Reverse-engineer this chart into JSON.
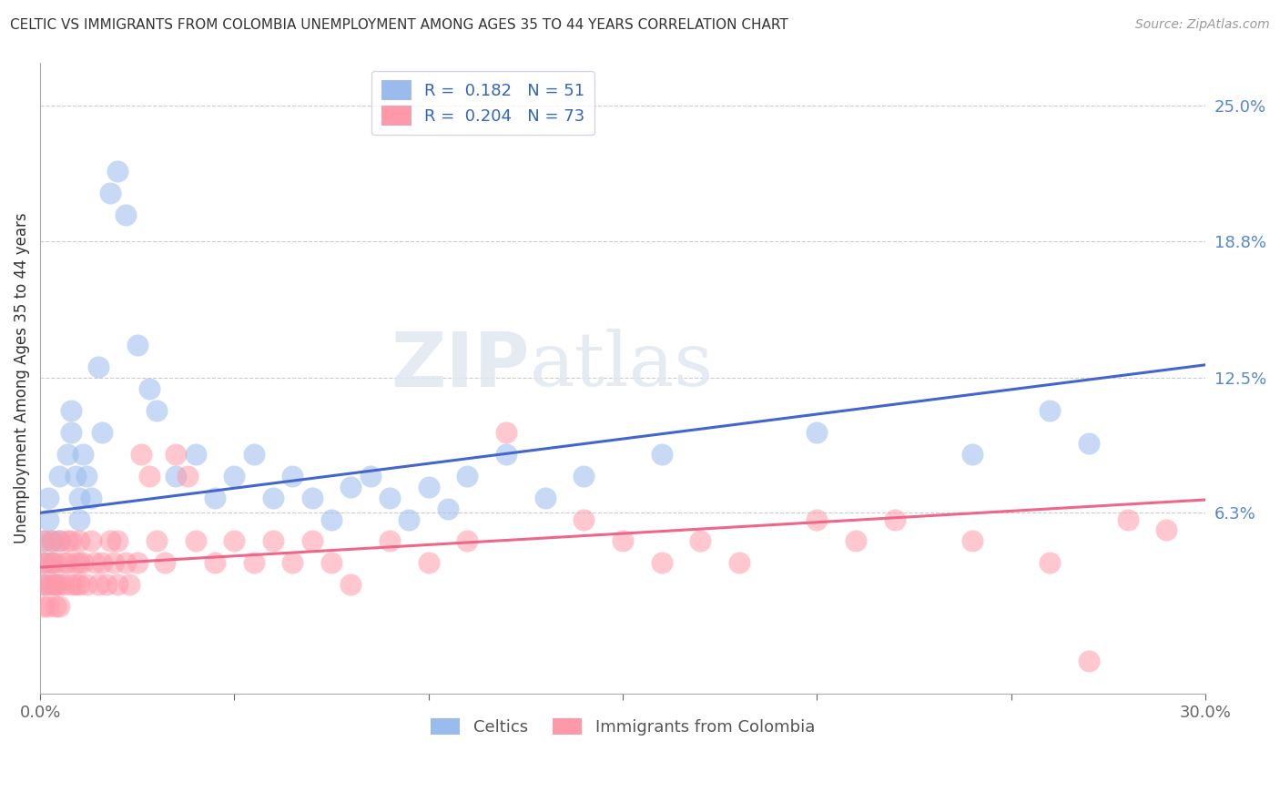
{
  "title": "CELTIC VS IMMIGRANTS FROM COLOMBIA UNEMPLOYMENT AMONG AGES 35 TO 44 YEARS CORRELATION CHART",
  "source": "Source: ZipAtlas.com",
  "ylabel": "Unemployment Among Ages 35 to 44 years",
  "xlim": [
    0.0,
    0.3
  ],
  "ylim": [
    -0.02,
    0.27
  ],
  "right_ytick_vals": [
    0.063,
    0.125,
    0.188,
    0.25
  ],
  "right_ytick_labels": [
    "6.3%",
    "12.5%",
    "18.8%",
    "25.0%"
  ],
  "legend_label1": "Celtics",
  "legend_label2": "Immigrants from Colombia",
  "color_blue": "#99BBEE",
  "color_pink": "#FF99AA",
  "trend_blue": "#4466CC",
  "trend_pink": "#EE6688",
  "watermark_zip": "ZIP",
  "watermark_atlas": "atlas",
  "background": "#FFFFFF",
  "grid_color": "#CCCCCC",
  "blue_trend_x": [
    0.0,
    0.3
  ],
  "blue_trend_y": [
    0.063,
    0.131
  ],
  "pink_trend_x": [
    0.0,
    0.3
  ],
  "pink_trend_y": [
    0.038,
    0.069
  ],
  "celtics_x": [
    0.001,
    0.001,
    0.001,
    0.002,
    0.002,
    0.003,
    0.003,
    0.004,
    0.005,
    0.005,
    0.007,
    0.008,
    0.008,
    0.009,
    0.01,
    0.01,
    0.011,
    0.012,
    0.013,
    0.015,
    0.016,
    0.018,
    0.02,
    0.022,
    0.025,
    0.028,
    0.03,
    0.035,
    0.04,
    0.045,
    0.05,
    0.055,
    0.06,
    0.065,
    0.07,
    0.075,
    0.08,
    0.085,
    0.09,
    0.095,
    0.1,
    0.105,
    0.11,
    0.12,
    0.13,
    0.14,
    0.16,
    0.2,
    0.24,
    0.26,
    0.27
  ],
  "celtics_y": [
    0.03,
    0.04,
    0.05,
    0.06,
    0.07,
    0.05,
    0.04,
    0.03,
    0.08,
    0.05,
    0.09,
    0.11,
    0.1,
    0.08,
    0.06,
    0.07,
    0.09,
    0.08,
    0.07,
    0.13,
    0.1,
    0.21,
    0.22,
    0.2,
    0.14,
    0.12,
    0.11,
    0.08,
    0.09,
    0.07,
    0.08,
    0.09,
    0.07,
    0.08,
    0.07,
    0.06,
    0.075,
    0.08,
    0.07,
    0.06,
    0.075,
    0.065,
    0.08,
    0.09,
    0.07,
    0.08,
    0.09,
    0.1,
    0.09,
    0.11,
    0.095
  ],
  "colombia_x": [
    0.001,
    0.001,
    0.001,
    0.001,
    0.002,
    0.002,
    0.002,
    0.003,
    0.003,
    0.003,
    0.004,
    0.004,
    0.004,
    0.005,
    0.005,
    0.005,
    0.006,
    0.006,
    0.007,
    0.007,
    0.008,
    0.008,
    0.009,
    0.009,
    0.01,
    0.01,
    0.01,
    0.011,
    0.012,
    0.013,
    0.014,
    0.015,
    0.016,
    0.017,
    0.018,
    0.019,
    0.02,
    0.02,
    0.022,
    0.023,
    0.025,
    0.026,
    0.028,
    0.03,
    0.032,
    0.035,
    0.038,
    0.04,
    0.045,
    0.05,
    0.055,
    0.06,
    0.065,
    0.07,
    0.075,
    0.08,
    0.09,
    0.1,
    0.11,
    0.12,
    0.14,
    0.15,
    0.16,
    0.17,
    0.18,
    0.2,
    0.21,
    0.22,
    0.24,
    0.26,
    0.27,
    0.28,
    0.29
  ],
  "colombia_y": [
    0.03,
    0.04,
    0.02,
    0.05,
    0.03,
    0.04,
    0.02,
    0.03,
    0.04,
    0.05,
    0.03,
    0.04,
    0.02,
    0.05,
    0.03,
    0.02,
    0.04,
    0.03,
    0.05,
    0.04,
    0.03,
    0.05,
    0.04,
    0.03,
    0.04,
    0.03,
    0.05,
    0.04,
    0.03,
    0.05,
    0.04,
    0.03,
    0.04,
    0.03,
    0.05,
    0.04,
    0.03,
    0.05,
    0.04,
    0.03,
    0.04,
    0.09,
    0.08,
    0.05,
    0.04,
    0.09,
    0.08,
    0.05,
    0.04,
    0.05,
    0.04,
    0.05,
    0.04,
    0.05,
    0.04,
    0.03,
    0.05,
    0.04,
    0.05,
    0.1,
    0.06,
    0.05,
    0.04,
    0.05,
    0.04,
    0.06,
    0.05,
    0.06,
    0.05,
    0.04,
    -0.005,
    0.06,
    0.055
  ]
}
